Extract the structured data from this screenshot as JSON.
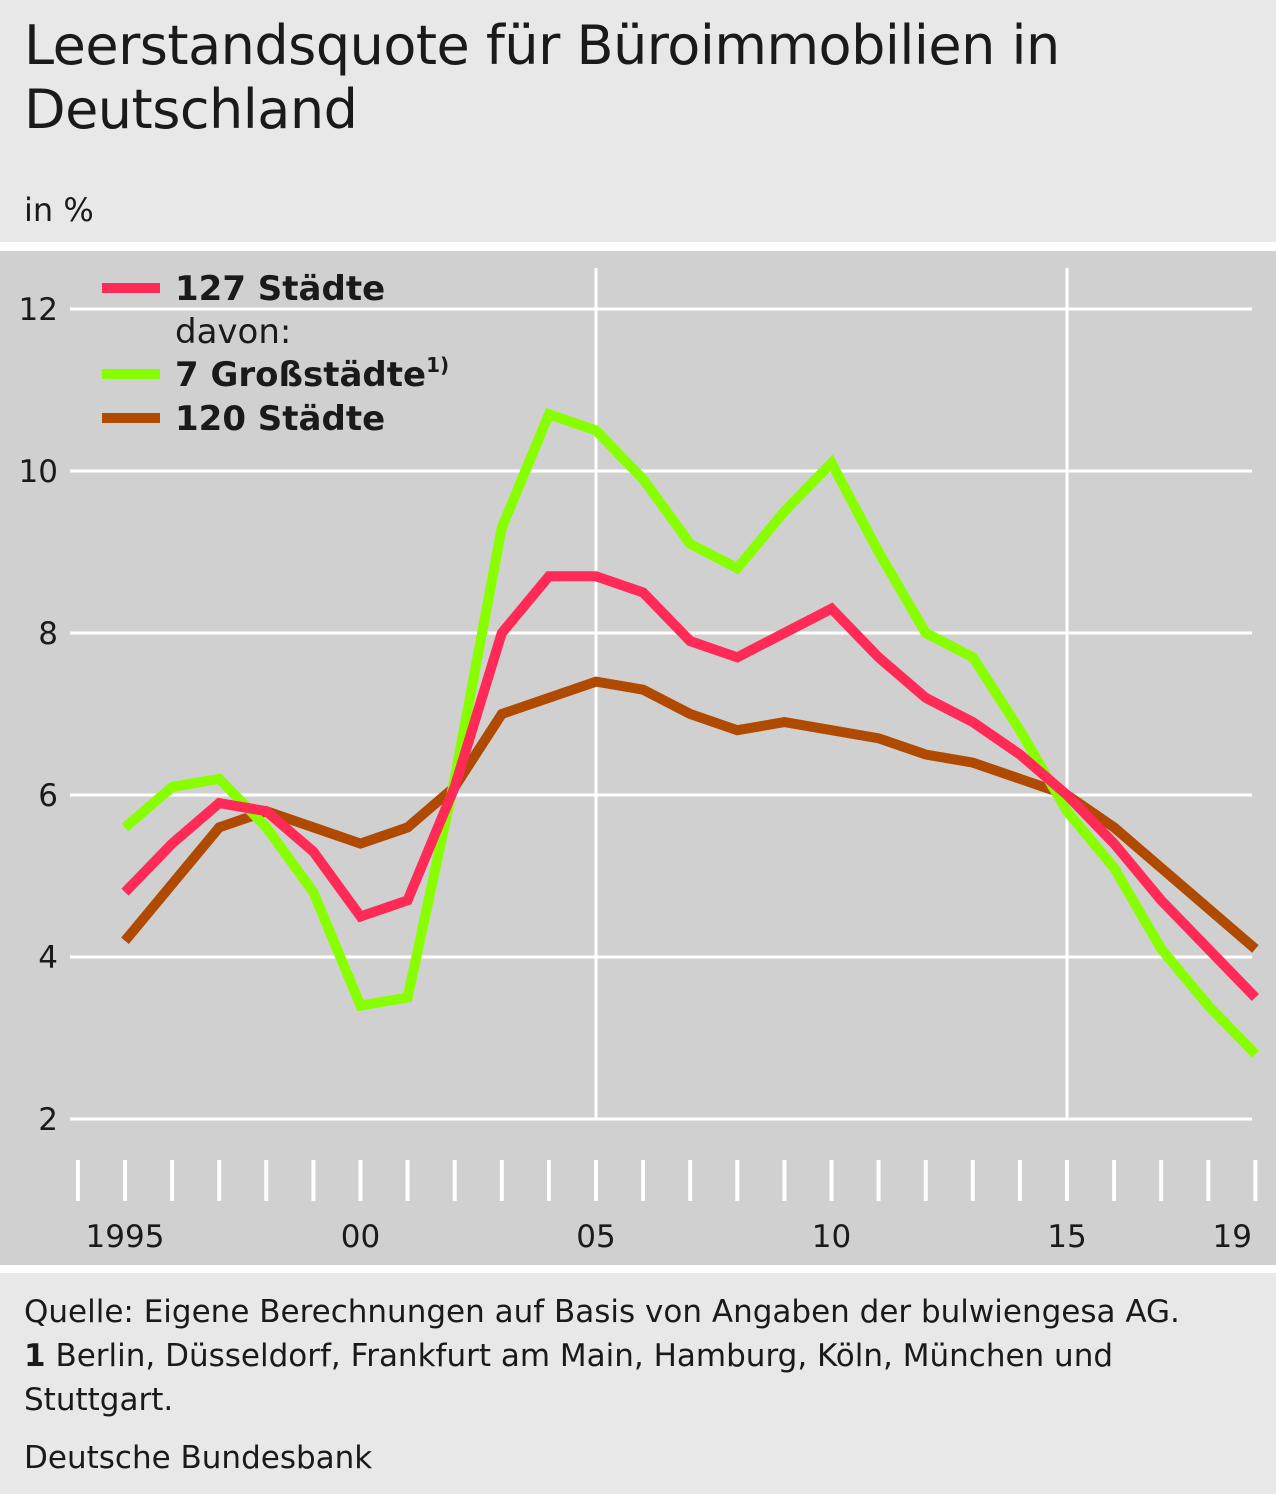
{
  "title": "Leerstandsquote für Büroimmobilien in Deutschland",
  "unit_label": "in %",
  "footer": {
    "source": "Quelle: Eigene Berechnungen auf Basis von Angaben der bulwiengesa AG.",
    "note_number": "1",
    "note_text": "Berlin, Düsseldorf, Frankfurt am Main, Hamburg, Köln, München und Stuttgart.",
    "publisher": "Deutsche Bundesbank"
  },
  "chart_data": {
    "type": "line",
    "title": "Leerstandsquote für Büroimmobilien in Deutschland",
    "ylabel": "in %",
    "xlabel": "",
    "ylim": [
      2,
      12.5
    ],
    "yticks": [
      2,
      4,
      6,
      8,
      10,
      12
    ],
    "x": [
      1995,
      1996,
      1997,
      1998,
      1999,
      2000,
      2001,
      2002,
      2003,
      2004,
      2005,
      2006,
      2007,
      2008,
      2009,
      2010,
      2011,
      2012,
      2013,
      2014,
      2015,
      2016,
      2017,
      2018,
      2019
    ],
    "xtick_labels": [
      {
        "year": 1995,
        "label": "1995"
      },
      {
        "year": 2000,
        "label": "00"
      },
      {
        "year": 2005,
        "label": "05"
      },
      {
        "year": 2010,
        "label": "10"
      },
      {
        "year": 2015,
        "label": "15"
      },
      {
        "year": 2019,
        "label": "19"
      }
    ],
    "vertical_gridlines_at": [
      2005,
      2015
    ],
    "legend_position": "top-left",
    "legend_subheading": "davon:",
    "series": [
      {
        "name": "127 Städte",
        "color": "#ff2a55",
        "values": [
          4.8,
          5.4,
          5.9,
          5.8,
          5.3,
          4.5,
          4.7,
          6.1,
          8.0,
          8.7,
          8.7,
          8.5,
          7.9,
          7.7,
          8.0,
          8.3,
          7.7,
          7.2,
          6.9,
          6.5,
          6.0,
          5.4,
          4.7,
          4.1,
          3.5
        ]
      },
      {
        "name": "7 Großstädte",
        "footnote": "1)",
        "color": "#88ff00",
        "values": [
          5.6,
          6.1,
          6.2,
          5.6,
          4.8,
          3.4,
          3.5,
          6.2,
          9.3,
          10.7,
          10.5,
          9.9,
          9.1,
          8.8,
          9.5,
          10.1,
          9.0,
          8.0,
          7.7,
          6.8,
          5.8,
          5.1,
          4.1,
          3.4,
          2.8
        ]
      },
      {
        "name": "120 Städte",
        "color": "#b04a00",
        "values": [
          4.2,
          4.9,
          5.6,
          5.8,
          5.6,
          5.4,
          5.6,
          6.1,
          7.0,
          7.2,
          7.4,
          7.3,
          7.0,
          6.8,
          6.9,
          6.8,
          6.7,
          6.5,
          6.4,
          6.2,
          6.0,
          5.6,
          5.1,
          4.6,
          4.1
        ]
      }
    ]
  }
}
